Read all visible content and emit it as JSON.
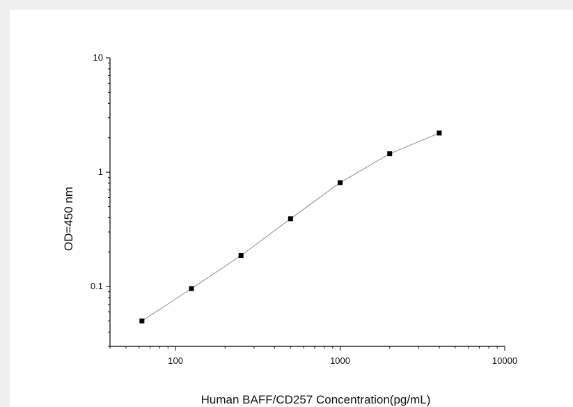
{
  "chart_data": {
    "type": "line",
    "title": "",
    "xlabel": "Human BAFF/CD257 Concentration(pg/mL)",
    "ylabel": "OD=450 nm",
    "x_scale": "log",
    "y_scale": "log",
    "xlim": [
      40,
      10000
    ],
    "ylim": [
      0.03,
      10
    ],
    "x_ticks": [
      {
        "value": 100,
        "label": "100"
      },
      {
        "value": 1000,
        "label": "1000"
      },
      {
        "value": 10000,
        "label": "10000"
      }
    ],
    "y_ticks": [
      {
        "value": 0.1,
        "label": "0.1"
      },
      {
        "value": 1,
        "label": "1"
      },
      {
        "value": 10,
        "label": "10"
      }
    ],
    "grid": false,
    "legend": "none",
    "series": [
      {
        "x": [
          62.5,
          125,
          250,
          500,
          1000,
          2000,
          4000
        ],
        "y": [
          0.05,
          0.096,
          0.187,
          0.392,
          0.81,
          1.45,
          2.2
        ],
        "marker": "square",
        "marker_color": "#000000",
        "line_color": "#8c8c8c"
      }
    ]
  }
}
